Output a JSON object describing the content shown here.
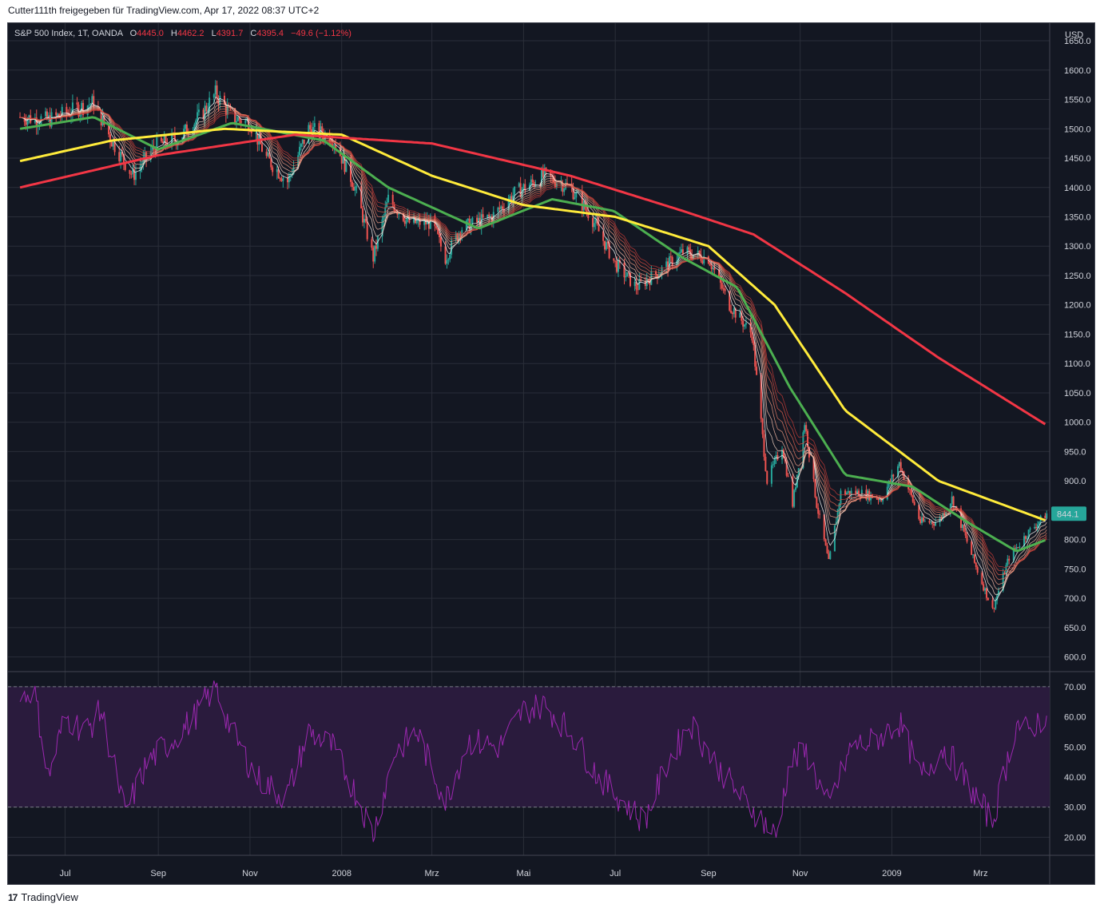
{
  "header": {
    "share_text": "Cutter111th freigegeben für TradingView.com, Apr 17, 2022 08:37 UTC+2"
  },
  "legend": {
    "symbol": "S&P 500 Index, 1T, OANDA",
    "o_label": "O",
    "o_value": "4445.0",
    "h_label": "H",
    "h_value": "4462.2",
    "l_label": "L",
    "l_value": "4391.7",
    "c_label": "C",
    "c_value": "4395.4",
    "change": "−49.6 (−1.12%)"
  },
  "footer": {
    "brand": "TradingView",
    "logo_glyph": "17"
  },
  "colors": {
    "background": "#131722",
    "grid": "#2a2e39",
    "up": "#26a69a",
    "down": "#ef5350",
    "ema_200": "#f23645",
    "ema_100": "#ffeb3b",
    "ema_50": "#4caf50",
    "rsi_line": "#9c27b0",
    "rsi_band": "#2a1b3d",
    "last_price_badge": "#26a69a"
  },
  "chart_data": [
    {
      "type": "candlestick",
      "currency_label": "USD",
      "last_price_label": "844.1",
      "ylim": [
        575,
        1680
      ],
      "y_ticks": [
        "1650.0",
        "1600.0",
        "1550.0",
        "1500.0",
        "1450.0",
        "1400.0",
        "1350.0",
        "1300.0",
        "1250.0",
        "1200.0",
        "1150.0",
        "1100.0",
        "1050.0",
        "1000.0",
        "950.0",
        "900.0",
        "850.0",
        "800.0",
        "750.0",
        "700.0",
        "650.0",
        "600.0"
      ],
      "x_ticks": [
        "Jul",
        "Sep",
        "Nov",
        "2008",
        "Mrz",
        "Mai",
        "Jul",
        "Sep",
        "Nov",
        "2009",
        "Mrz"
      ],
      "close_path": [
        [
          "2007-06-01",
          1520
        ],
        [
          "2007-06-20",
          1515
        ],
        [
          "2007-07-10",
          1535
        ],
        [
          "2007-07-20",
          1545
        ],
        [
          "2007-08-01",
          1480
        ],
        [
          "2007-08-15",
          1420
        ],
        [
          "2007-08-30",
          1470
        ],
        [
          "2007-09-15",
          1485
        ],
        [
          "2007-09-30",
          1525
        ],
        [
          "2007-10-09",
          1560
        ],
        [
          "2007-10-20",
          1520
        ],
        [
          "2007-11-01",
          1510
        ],
        [
          "2007-11-12",
          1450
        ],
        [
          "2007-11-26",
          1410
        ],
        [
          "2007-12-10",
          1500
        ],
        [
          "2007-12-26",
          1485
        ],
        [
          "2008-01-10",
          1400
        ],
        [
          "2008-01-22",
          1280
        ],
        [
          "2008-02-01",
          1380
        ],
        [
          "2008-02-15",
          1340
        ],
        [
          "2008-03-01",
          1340
        ],
        [
          "2008-03-10",
          1280
        ],
        [
          "2008-03-20",
          1330
        ],
        [
          "2008-04-10",
          1350
        ],
        [
          "2008-04-25",
          1390
        ],
        [
          "2008-05-15",
          1420
        ],
        [
          "2008-06-01",
          1400
        ],
        [
          "2008-06-15",
          1350
        ],
        [
          "2008-07-01",
          1270
        ],
        [
          "2008-07-15",
          1230
        ],
        [
          "2008-08-01",
          1260
        ],
        [
          "2008-08-15",
          1290
        ],
        [
          "2008-09-01",
          1280
        ],
        [
          "2008-09-15",
          1200
        ],
        [
          "2008-09-30",
          1150
        ],
        [
          "2008-10-10",
          900
        ],
        [
          "2008-10-20",
          960
        ],
        [
          "2008-10-27",
          860
        ],
        [
          "2008-11-04",
          1000
        ],
        [
          "2008-11-12",
          860
        ],
        [
          "2008-11-20",
          760
        ],
        [
          "2008-11-28",
          880
        ],
        [
          "2008-12-10",
          880
        ],
        [
          "2008-12-25",
          870
        ],
        [
          "2009-01-06",
          930
        ],
        [
          "2009-01-20",
          830
        ],
        [
          "2009-02-01",
          830
        ],
        [
          "2009-02-10",
          870
        ],
        [
          "2009-02-25",
          760
        ],
        [
          "2009-03-09",
          680
        ],
        [
          "2009-03-20",
          770
        ],
        [
          "2009-04-01",
          810
        ],
        [
          "2009-04-14",
          844
        ]
      ],
      "ema_200_path": [
        [
          "2007-06-01",
          1400
        ],
        [
          "2007-09-01",
          1455
        ],
        [
          "2007-12-01",
          1490
        ],
        [
          "2008-03-01",
          1475
        ],
        [
          "2008-06-01",
          1420
        ],
        [
          "2008-08-15",
          1360
        ],
        [
          "2008-10-01",
          1320
        ],
        [
          "2008-12-01",
          1220
        ],
        [
          "2009-02-01",
          1110
        ],
        [
          "2009-04-14",
          995
        ]
      ],
      "ema_100_path": [
        [
          "2007-06-01",
          1445
        ],
        [
          "2007-08-01",
          1480
        ],
        [
          "2007-10-15",
          1500
        ],
        [
          "2008-01-01",
          1490
        ],
        [
          "2008-03-01",
          1420
        ],
        [
          "2008-05-01",
          1370
        ],
        [
          "2008-07-01",
          1350
        ],
        [
          "2008-09-01",
          1300
        ],
        [
          "2008-10-15",
          1200
        ],
        [
          "2008-12-01",
          1020
        ],
        [
          "2009-02-01",
          900
        ],
        [
          "2009-04-14",
          832
        ]
      ],
      "ema_50_path": [
        [
          "2007-06-01",
          1500
        ],
        [
          "2007-07-20",
          1520
        ],
        [
          "2007-09-01",
          1465
        ],
        [
          "2007-10-20",
          1510
        ],
        [
          "2007-12-20",
          1480
        ],
        [
          "2008-02-01",
          1400
        ],
        [
          "2008-04-01",
          1330
        ],
        [
          "2008-05-20",
          1380
        ],
        [
          "2008-06-30",
          1360
        ],
        [
          "2008-08-15",
          1280
        ],
        [
          "2008-09-20",
          1230
        ],
        [
          "2008-10-25",
          1060
        ],
        [
          "2008-12-01",
          910
        ],
        [
          "2009-01-15",
          890
        ],
        [
          "2009-02-20",
          830
        ],
        [
          "2009-03-25",
          780
        ],
        [
          "2009-04-14",
          800
        ]
      ]
    },
    {
      "type": "line",
      "indicator": "RSI",
      "ylim": [
        14,
        75
      ],
      "y_ticks": [
        "70.00",
        "60.00",
        "50.00",
        "40.00",
        "30.00",
        "20.00"
      ],
      "band_levels": [
        30,
        70
      ],
      "values_path": [
        [
          "2007-06-01",
          65
        ],
        [
          "2007-06-10",
          70
        ],
        [
          "2007-06-20",
          40
        ],
        [
          "2007-07-01",
          60
        ],
        [
          "2007-07-15",
          55
        ],
        [
          "2007-07-25",
          62
        ],
        [
          "2007-08-10",
          28
        ],
        [
          "2007-08-25",
          45
        ],
        [
          "2007-09-10",
          52
        ],
        [
          "2007-09-25",
          60
        ],
        [
          "2007-10-09",
          70
        ],
        [
          "2007-10-20",
          55
        ],
        [
          "2007-11-05",
          40
        ],
        [
          "2007-11-25",
          33
        ],
        [
          "2007-12-10",
          55
        ],
        [
          "2007-12-26",
          50
        ],
        [
          "2008-01-10",
          35
        ],
        [
          "2008-01-22",
          21
        ],
        [
          "2008-02-05",
          48
        ],
        [
          "2008-02-20",
          55
        ],
        [
          "2008-03-10",
          32
        ],
        [
          "2008-03-25",
          52
        ],
        [
          "2008-04-15",
          50
        ],
        [
          "2008-05-01",
          62
        ],
        [
          "2008-05-15",
          64
        ],
        [
          "2008-06-01",
          55
        ],
        [
          "2008-06-20",
          40
        ],
        [
          "2008-07-10",
          30
        ],
        [
          "2008-07-20",
          25
        ],
        [
          "2008-08-05",
          45
        ],
        [
          "2008-08-20",
          58
        ],
        [
          "2008-09-05",
          45
        ],
        [
          "2008-09-20",
          35
        ],
        [
          "2008-10-08",
          25
        ],
        [
          "2008-10-16",
          20
        ],
        [
          "2008-10-25",
          45
        ],
        [
          "2008-11-05",
          48
        ],
        [
          "2008-11-20",
          30
        ],
        [
          "2008-12-05",
          50
        ],
        [
          "2008-12-20",
          52
        ],
        [
          "2009-01-06",
          58
        ],
        [
          "2009-01-20",
          40
        ],
        [
          "2009-02-05",
          50
        ],
        [
          "2009-02-20",
          38
        ],
        [
          "2009-03-09",
          25
        ],
        [
          "2009-03-25",
          58
        ],
        [
          "2009-04-01",
          55
        ],
        [
          "2009-04-14",
          61
        ]
      ]
    }
  ]
}
